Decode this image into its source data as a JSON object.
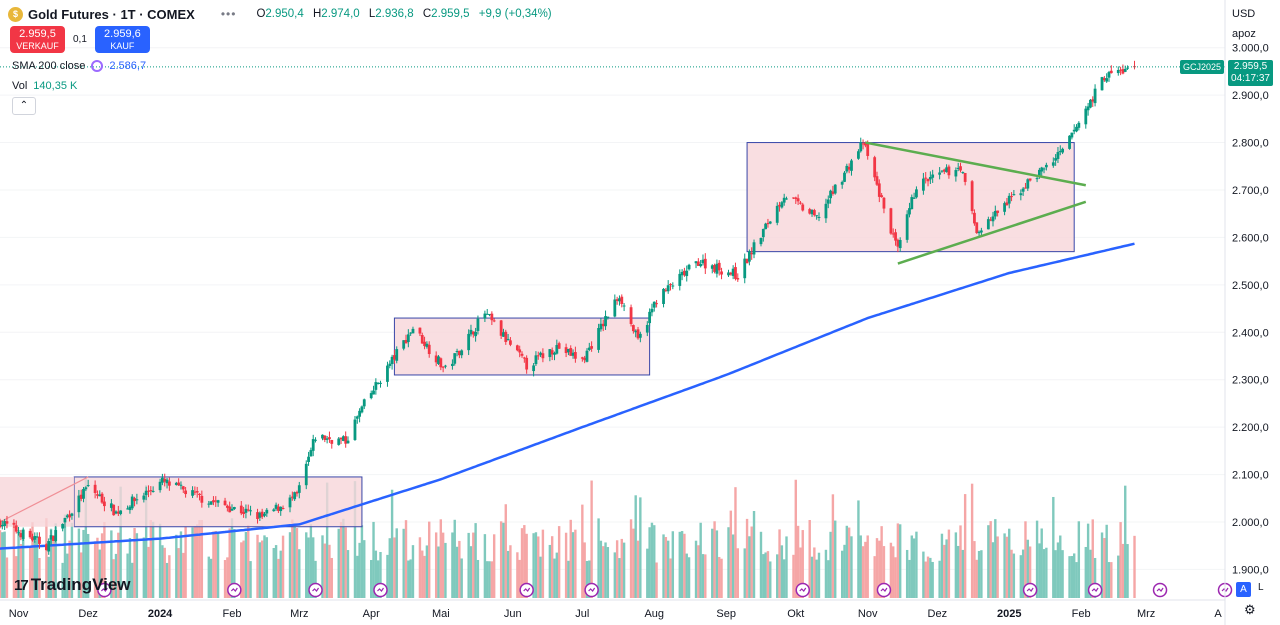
{
  "header": {
    "title": "Gold Futures · 1T · COMEX",
    "logo_glyph": "$",
    "more_label": "•••",
    "ohlc": [
      {
        "k": "O",
        "v": "2.950,4"
      },
      {
        "k": "H",
        "v": "2.974,0"
      },
      {
        "k": "L",
        "v": "2.936,8"
      },
      {
        "k": "C",
        "v": "2.959,5"
      },
      {
        "k": "",
        "v": "+9,9 (+0,34%)"
      }
    ]
  },
  "trade": {
    "sell_price": "2.959,5",
    "sell_label": "VERKAUF",
    "spread": "0,1",
    "buy_price": "2.959,6",
    "buy_label": "KAUF"
  },
  "indicators": {
    "sma_label": "SMA 200 close",
    "sma_value": "2.586,7",
    "vol_label": "Vol",
    "vol_value": "140,35 K",
    "collapse_glyph": "⌃"
  },
  "right": {
    "currency": "USD",
    "mode": "apoz",
    "symbol_tag": "GCJ2025",
    "last_price": "2.959,5",
    "countdown": "04:17:37",
    "auto_label": "A",
    "log_label": "L",
    "settings_glyph": "⚙"
  },
  "branding": {
    "logo_mark": "17",
    "name": "TradingView"
  },
  "colors": {
    "up": "#089981",
    "down": "#f23645",
    "sma": "#2962ff",
    "vol_up": "#7fc9bd",
    "vol_down": "#f5a6a6",
    "box_fill": "#f8d6d9",
    "box_stroke": "#3846a8",
    "triangle": "#5cad4f"
  },
  "chart_data": {
    "type": "candlestick",
    "y_axis": {
      "ticks": [
        1900,
        2000,
        2100,
        2200,
        2300,
        2400,
        2500,
        2600,
        2700,
        2800,
        2900,
        3000
      ],
      "tick_labels": [
        "1.900,0",
        "2.000,0",
        "2.100,0",
        "2.200,0",
        "2.300,0",
        "2.400,0",
        "2.500,0",
        "2.600,0",
        "2.700,0",
        "2.800,0",
        "2.900,0",
        "3.000,0"
      ]
    },
    "x_axis": {
      "labels": [
        {
          "label": "Nov",
          "date": "2023-11-01"
        },
        {
          "label": "Dez",
          "date": "2023-12-01"
        },
        {
          "label": "2024",
          "date": "2024-01-01"
        },
        {
          "label": "Feb",
          "date": "2024-02-01"
        },
        {
          "label": "Mrz",
          "date": "2024-03-01"
        },
        {
          "label": "Apr",
          "date": "2024-04-01"
        },
        {
          "label": "Mai",
          "date": "2024-05-01"
        },
        {
          "label": "Jun",
          "date": "2024-06-01"
        },
        {
          "label": "Jul",
          "date": "2024-07-01"
        },
        {
          "label": "Aug",
          "date": "2024-08-01"
        },
        {
          "label": "Sep",
          "date": "2024-09-01"
        },
        {
          "label": "Okt",
          "date": "2024-10-01"
        },
        {
          "label": "Nov",
          "date": "2024-11-01"
        },
        {
          "label": "Dez",
          "date": "2024-12-01"
        },
        {
          "label": "2025",
          "date": "2025-01-01"
        },
        {
          "label": "Feb",
          "date": "2025-02-01"
        },
        {
          "label": "Mrz",
          "date": "2025-03-01"
        },
        {
          "label": "A",
          "date": "2025-04-01"
        }
      ],
      "date_range": [
        "2023-10-24",
        "2025-04-04"
      ]
    },
    "price_path": [
      {
        "date": "2023-10-24",
        "close": 2000
      },
      {
        "date": "2023-11-13",
        "close": 1950
      },
      {
        "date": "2023-12-01",
        "close": 2075
      },
      {
        "date": "2023-12-13",
        "close": 2020
      },
      {
        "date": "2024-01-02",
        "close": 2085
      },
      {
        "date": "2024-01-19",
        "close": 2050
      },
      {
        "date": "2024-02-14",
        "close": 2010
      },
      {
        "date": "2024-02-29",
        "close": 2055
      },
      {
        "date": "2024-03-08",
        "close": 2180
      },
      {
        "date": "2024-03-21",
        "close": 2170
      },
      {
        "date": "2024-03-28",
        "close": 2240
      },
      {
        "date": "2024-04-19",
        "close": 2410
      },
      {
        "date": "2024-05-03",
        "close": 2320
      },
      {
        "date": "2024-05-20",
        "close": 2440
      },
      {
        "date": "2024-06-07",
        "close": 2330
      },
      {
        "date": "2024-06-20",
        "close": 2370
      },
      {
        "date": "2024-07-01",
        "close": 2340
      },
      {
        "date": "2024-07-17",
        "close": 2480
      },
      {
        "date": "2024-07-25",
        "close": 2380
      },
      {
        "date": "2024-08-02",
        "close": 2470
      },
      {
        "date": "2024-08-20",
        "close": 2550
      },
      {
        "date": "2024-09-06",
        "close": 2520
      },
      {
        "date": "2024-09-26",
        "close": 2690
      },
      {
        "date": "2024-10-10",
        "close": 2640
      },
      {
        "date": "2024-10-30",
        "close": 2800
      },
      {
        "date": "2024-11-14",
        "close": 2570
      },
      {
        "date": "2024-11-22",
        "close": 2710
      },
      {
        "date": "2024-12-11",
        "close": 2750
      },
      {
        "date": "2024-12-18",
        "close": 2610
      },
      {
        "date": "2025-01-10",
        "close": 2720
      },
      {
        "date": "2025-01-24",
        "close": 2780
      },
      {
        "date": "2025-02-11",
        "close": 2940
      },
      {
        "date": "2025-02-24",
        "close": 2959.5
      }
    ],
    "sma_200_path": [
      {
        "date": "2023-10-24",
        "value": 1944
      },
      {
        "date": "2024-01-01",
        "value": 1965
      },
      {
        "date": "2024-03-01",
        "value": 1995
      },
      {
        "date": "2024-05-01",
        "value": 2090
      },
      {
        "date": "2024-07-01",
        "value": 2200
      },
      {
        "date": "2024-09-01",
        "value": 2310
      },
      {
        "date": "2024-11-01",
        "value": 2430
      },
      {
        "date": "2025-01-01",
        "value": 2525
      },
      {
        "date": "2025-02-24",
        "value": 2586.7
      }
    ],
    "last_close": 2959.5,
    "consolidation_boxes": [
      {
        "start": "2023-11-25",
        "end": "2024-03-28",
        "low": 1990,
        "high": 2095
      },
      {
        "start": "2024-04-11",
        "end": "2024-07-30",
        "low": 2310,
        "high": 2430
      },
      {
        "start": "2024-09-10",
        "end": "2025-01-29",
        "low": 2570,
        "high": 2800
      }
    ],
    "triangle_lines": [
      {
        "from": {
          "date": "2024-10-31",
          "value": 2800
        },
        "to": {
          "date": "2025-02-03",
          "value": 2710
        }
      },
      {
        "from": {
          "date": "2024-11-14",
          "value": 2545
        },
        "to": {
          "date": "2025-02-03",
          "value": 2675
        }
      }
    ],
    "annotation_line": {
      "from": {
        "date": "2023-10-24",
        "value": 2000
      },
      "to": {
        "date": "2023-12-01",
        "value": 2095
      }
    }
  }
}
